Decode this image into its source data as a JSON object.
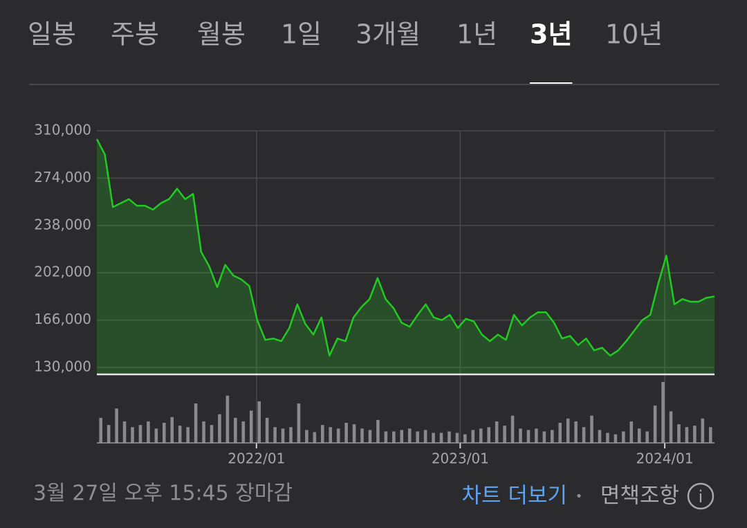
{
  "tabs": [
    "일봉",
    "주봉",
    "월봉",
    "1일",
    "3개월",
    "1년",
    "3년",
    "10년"
  ],
  "selected_tab": "3년",
  "chart_data": [
    {
      "type": "line",
      "color": "#1fcc1f",
      "fill": true,
      "values": [
        303700,
        292000,
        252000,
        255000,
        258000,
        253000,
        253000,
        250000,
        255000,
        258000,
        266000,
        258000,
        262000,
        218000,
        207000,
        191000,
        208000,
        200000,
        197000,
        192000,
        166000,
        151000,
        152000,
        150000,
        160000,
        178000,
        163000,
        155000,
        168000,
        139000,
        152000,
        150000,
        168000,
        176000,
        182000,
        198000,
        182000,
        175000,
        164000,
        161000,
        170000,
        178000,
        168000,
        166000,
        170000,
        160000,
        167000,
        165000,
        155000,
        150000,
        155000,
        151000,
        170000,
        162000,
        168000,
        172000,
        172000,
        164000,
        152000,
        154000,
        147000,
        152000,
        143000,
        145000,
        139000,
        143000,
        150000,
        158000,
        166000,
        170000,
        194000,
        215000,
        178000,
        182000,
        180000,
        180000,
        183000,
        184000
      ],
      "xlim": [
        0,
        77
      ],
      "xticks": [
        {
          "value": 19.9,
          "label": "2022/01"
        },
        {
          "value": 45.3,
          "label": "2023/01"
        },
        {
          "value": 70.8,
          "label": "2024/01"
        }
      ],
      "ylim": [
        130000,
        310000
      ],
      "yticks": [
        {
          "value": 130000,
          "label": "130,000"
        },
        {
          "value": 166000,
          "label": "166,000"
        },
        {
          "value": 202000,
          "label": "202,000"
        },
        {
          "value": 238000,
          "label": "238,000"
        },
        {
          "value": 274000,
          "label": "274,000"
        },
        {
          "value": 310000,
          "label": "310,000"
        }
      ],
      "grid": true
    },
    {
      "type": "bar",
      "color": "#8a8a8c",
      "values": [
        35,
        25,
        48,
        30,
        22,
        25,
        30,
        20,
        28,
        36,
        24,
        22,
        55,
        30,
        25,
        40,
        66,
        35,
        30,
        45,
        58,
        35,
        22,
        20,
        22,
        55,
        18,
        15,
        25,
        22,
        20,
        28,
        26,
        20,
        18,
        32,
        16,
        16,
        18,
        20,
        16,
        18,
        14,
        14,
        16,
        14,
        12,
        18,
        20,
        22,
        30,
        24,
        38,
        20,
        18,
        20,
        16,
        18,
        28,
        34,
        30,
        22,
        38,
        18,
        14,
        12,
        16,
        30,
        20,
        16,
        52,
        85,
        44,
        26,
        22,
        24,
        34,
        22
      ]
    }
  ],
  "footer": {
    "timestamp": "3월 27일 오후 15:45 장마감",
    "more_link": "차트 더보기",
    "separator": "•",
    "disclaimer": "면책조항",
    "info_icon": "i"
  }
}
